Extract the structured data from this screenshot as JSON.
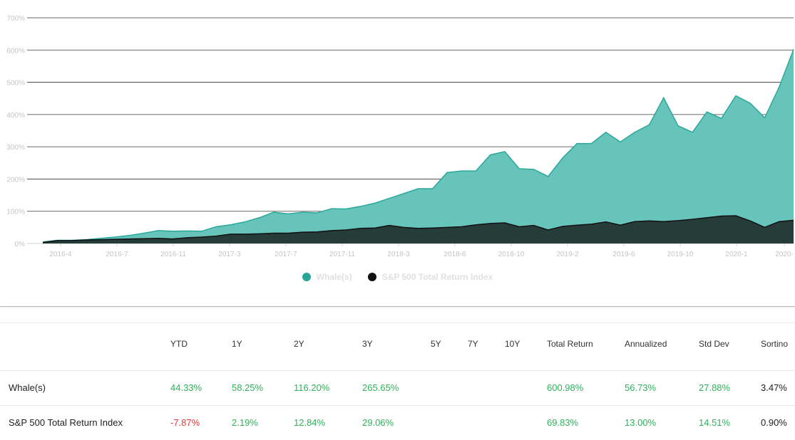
{
  "chart_data": {
    "type": "area",
    "title": "",
    "xlabel": "",
    "ylabel": "",
    "ylim": [
      0,
      700
    ],
    "y_ticks": [
      "0%",
      "100%",
      "200%",
      "300%",
      "400%",
      "500%",
      "600%",
      "700%"
    ],
    "x_ticks": [
      "2016-4",
      "2016-7",
      "2016-11",
      "2017-3",
      "2017-7",
      "2017-11",
      "2018-3",
      "2018-6",
      "2018-10",
      "2019-2",
      "2019-6",
      "2019-10",
      "2020-1",
      "2020-"
    ],
    "x": [
      0,
      1,
      2,
      3,
      4,
      5,
      6,
      7,
      8,
      9,
      10,
      11,
      12,
      13,
      14,
      15,
      16,
      17,
      18,
      19,
      20,
      21,
      22,
      23,
      24,
      25,
      26,
      27,
      28,
      29,
      30,
      31,
      32,
      33,
      34,
      35,
      36,
      37,
      38,
      39,
      40,
      41,
      42,
      43,
      44,
      45,
      46,
      47,
      48,
      49,
      50,
      51,
      52
    ],
    "grid": true,
    "legend_position": "bottom",
    "series": [
      {
        "name": "Whale(s)",
        "color": "#66c4bb",
        "line_color": "#2aa79b",
        "values": [
          5,
          10,
          10,
          12,
          16,
          20,
          25,
          32,
          40,
          38,
          39,
          38,
          52,
          58,
          67,
          80,
          97,
          92,
          97,
          95,
          108,
          107,
          115,
          125,
          140,
          155,
          170,
          170,
          220,
          225,
          225,
          275,
          285,
          232,
          230,
          208,
          265,
          310,
          310,
          345,
          315,
          345,
          368,
          452,
          365,
          345,
          408,
          388,
          458,
          435,
          390,
          485,
          602
        ]
      },
      {
        "name": "S&P 500 Total Return Index",
        "color": "#263c38",
        "line_color": "#111111",
        "values": [
          3,
          9,
          9,
          11,
          12,
          13,
          14,
          15,
          16,
          14,
          18,
          20,
          23,
          29,
          29,
          30,
          32,
          32,
          35,
          36,
          40,
          42,
          47,
          48,
          56,
          50,
          47,
          48,
          50,
          52,
          58,
          62,
          64,
          52,
          56,
          42,
          53,
          57,
          60,
          67,
          57,
          68,
          70,
          68,
          71,
          75,
          80,
          85,
          86,
          70,
          50,
          68,
          72
        ]
      }
    ]
  },
  "legend": {
    "whale_label": "Whale(s)",
    "sp500_label": "S&P 500 Total Return Index",
    "whale_color": "#26a69a",
    "sp500_color": "#111111"
  },
  "stats": {
    "headers": [
      "YTD",
      "1Y",
      "2Y",
      "3Y",
      "5Y",
      "7Y",
      "10Y",
      "Total Return",
      "Annualized",
      "Std Dev",
      "Sortino"
    ],
    "rows": [
      {
        "name": "Whale(s)",
        "values": [
          "44.33%",
          "58.25%",
          "116.20%",
          "265.65%",
          "",
          "",
          "",
          "600.98%",
          "56.73%",
          "27.88%",
          "3.47%"
        ]
      },
      {
        "name": "S&P 500 Total Return Index",
        "values": [
          "-7.87%",
          "2.19%",
          "12.84%",
          "29.06%",
          "",
          "",
          "",
          "69.83%",
          "13.00%",
          "14.51%",
          "0.90%"
        ]
      }
    ],
    "colors": {
      "positive": "#2eb25a",
      "negative": "#e53935",
      "neutral": "#222222"
    }
  }
}
